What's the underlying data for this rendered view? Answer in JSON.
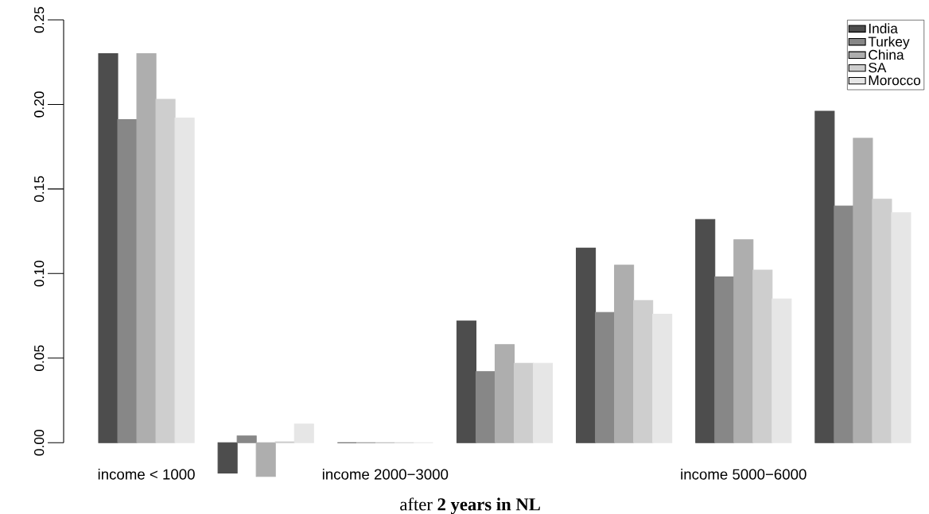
{
  "chart_data": {
    "type": "bar",
    "xlabel": "after **2 years in NL**",
    "categories": [
      "income < 1000",
      null,
      "income 2000−3000",
      null,
      null,
      "income 5000−6000",
      null
    ],
    "series": [
      {
        "name": "India",
        "color": "#4d4d4d",
        "values": [
          0.23,
          -0.018,
          0,
          0.072,
          0.115,
          0.132,
          0.196
        ]
      },
      {
        "name": "Turkey",
        "color": "#878787",
        "values": [
          0.191,
          0.004,
          0,
          0.042,
          0.077,
          0.098,
          0.14
        ]
      },
      {
        "name": "China",
        "color": "#aeaeae",
        "values": [
          0.23,
          -0.02,
          0,
          0.058,
          0.105,
          0.12,
          0.18
        ]
      },
      {
        "name": "SA",
        "color": "#cecece",
        "values": [
          0.203,
          0.0005,
          0,
          0.047,
          0.084,
          0.102,
          0.144
        ]
      },
      {
        "name": "Morocco",
        "color": "#e6e6e6",
        "values": [
          0.192,
          0.011,
          0,
          0.047,
          0.076,
          0.085,
          0.136
        ]
      }
    ],
    "ylim": [
      -0.0215,
      0.25
    ],
    "yticks": [
      {
        "value": 0,
        "label": "0.00"
      },
      0.05,
      {
        "value": 0.1,
        "label": "0.10"
      },
      0.15,
      {
        "value": 0.2,
        "label": "0.20"
      },
      0.25
    ],
    "grid": false,
    "legend": "top right"
  }
}
